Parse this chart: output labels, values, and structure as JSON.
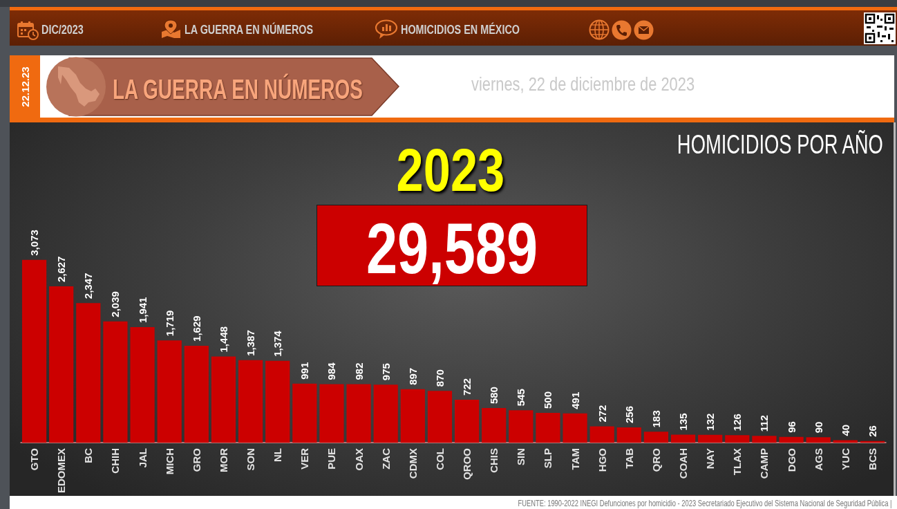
{
  "chart_data": {
    "type": "bar",
    "title": "HOMICIDIOS POR AÑO",
    "subtitle": "2023",
    "categories": [
      "GTO",
      "EDOMEX",
      "BC",
      "CHIH",
      "JAL",
      "MICH",
      "GRO",
      "MOR",
      "SON",
      "NL",
      "VER",
      "PUE",
      "OAX",
      "ZAC",
      "CDMX",
      "COL",
      "QROO",
      "CHIS",
      "SIN",
      "SLP",
      "TAM",
      "HGO",
      "TAB",
      "QRO",
      "COAH",
      "NAY",
      "TLAX",
      "CAMP",
      "DGO",
      "AGS",
      "YUC",
      "BCS"
    ],
    "values": [
      3073,
      2627,
      2347,
      2039,
      1941,
      1719,
      1629,
      1448,
      1387,
      1374,
      991,
      984,
      982,
      975,
      897,
      870,
      722,
      580,
      545,
      500,
      491,
      272,
      256,
      183,
      135,
      132,
      126,
      112,
      96,
      90,
      40,
      26
    ],
    "value_labels": [
      "3,073",
      "2,627",
      "2,347",
      "2,039",
      "1,941",
      "1,719",
      "1,629",
      "1,448",
      "1,387",
      "1,374",
      "991",
      "984",
      "982",
      "975",
      "897",
      "870",
      "722",
      "580",
      "545",
      "500",
      "491",
      "272",
      "256",
      "183",
      "135",
      "132",
      "126",
      "112",
      "96",
      "90",
      "40",
      "26"
    ],
    "color": "#cc0000",
    "tick_labels": "x",
    "annotations": [
      "DIC/2023",
      "LA GUERRA EN NÚMEROS",
      "HOMICIDIOS EN MÉXICO",
      "22.12.23",
      "LA GUERRA EN NÚMEROS",
      "viernes, 22 de diciembre de 2023",
      "29,589",
      "FUENTE: 1990-2022 INEGI Defunciones por homicidio - 2023 Secretariado Ejecutivo del Sistema Nacional de Seguridad Pública |"
    ]
  }
}
